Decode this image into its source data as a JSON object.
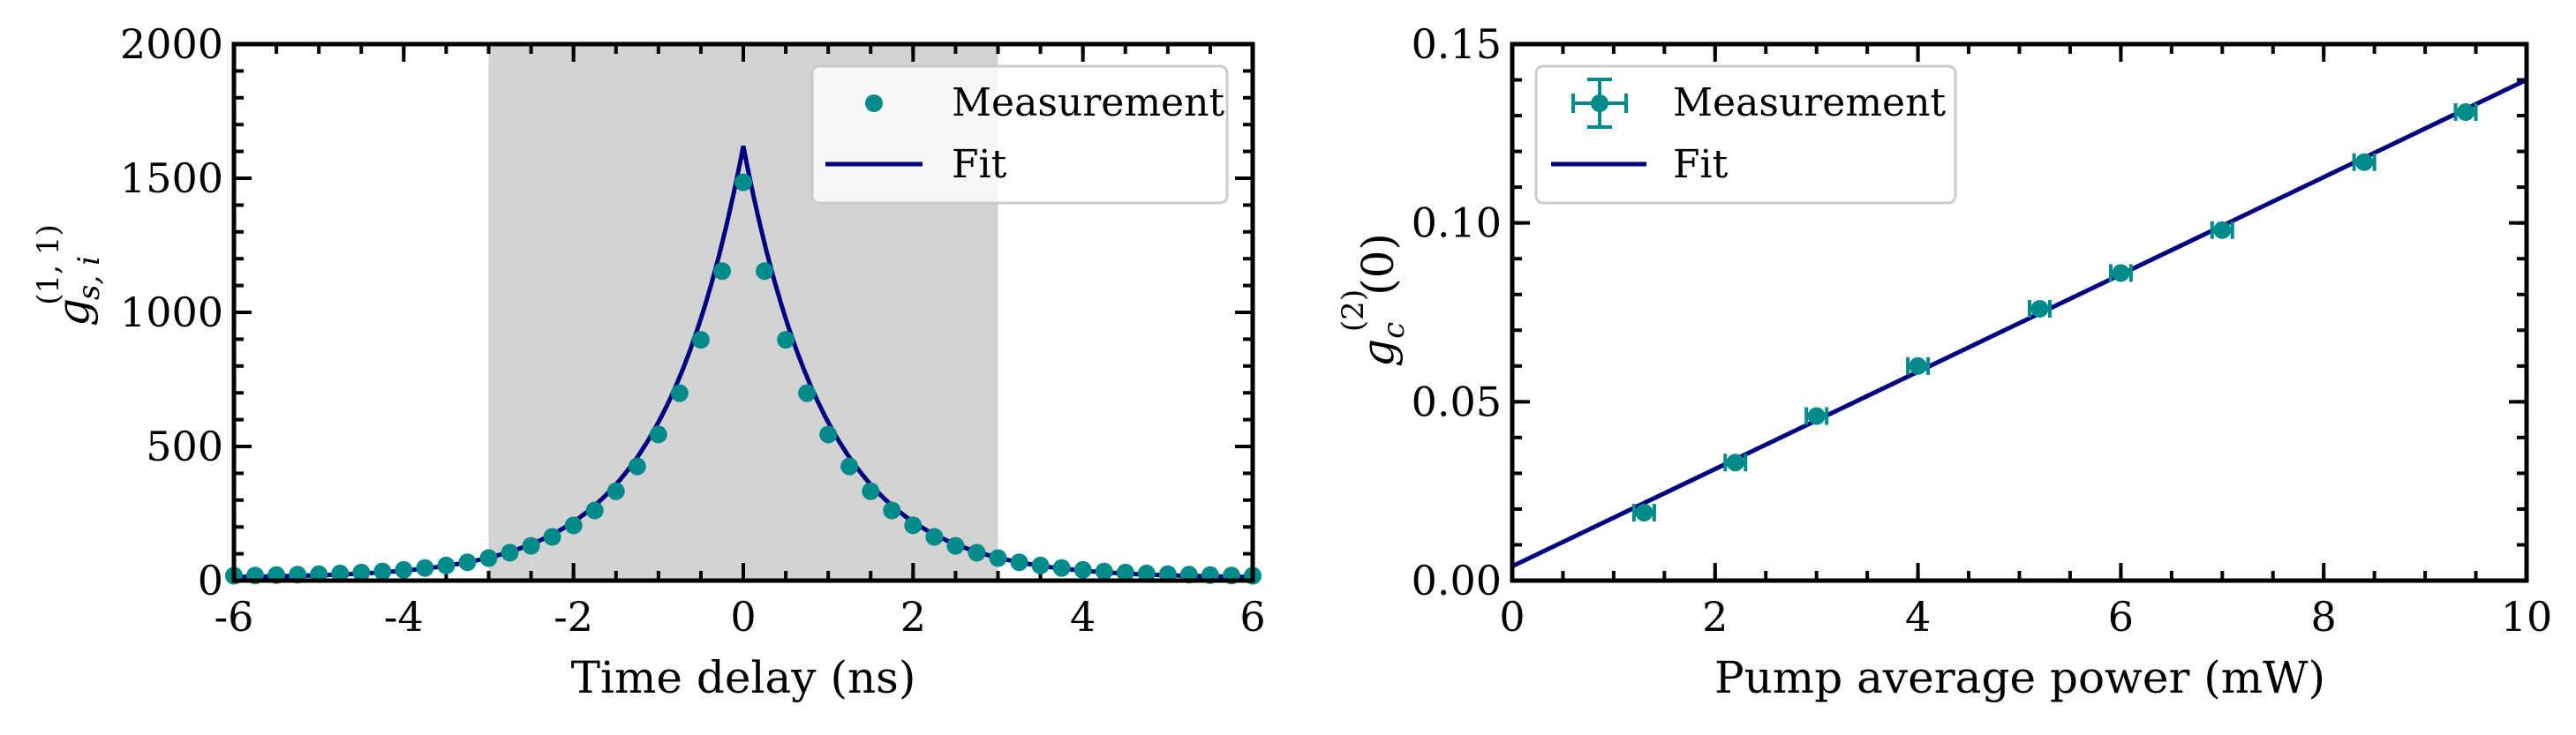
{
  "chart_data": [
    {
      "type": "scatter",
      "xlabel": "Time delay (ns)",
      "ylabel": "g_{s,i}^{(1,1)}",
      "ylabel_main": "g",
      "ylabel_sub": "s, i",
      "ylabel_sup": "(1, 1)",
      "xlim": [
        -6,
        6
      ],
      "ylim": [
        0,
        2000
      ],
      "xticks": [
        -6,
        -4,
        -2,
        0,
        2,
        4,
        6
      ],
      "xtick_labels": [
        "-6",
        "-4",
        "-2",
        "0",
        "2",
        "4",
        "6"
      ],
      "yticks": [
        0,
        500,
        1000,
        1500,
        2000
      ],
      "ytick_labels": [
        "0",
        "500",
        "1000",
        "1500",
        "2000"
      ],
      "shaded_region": [
        -3,
        3
      ],
      "legend": [
        "Measurement",
        "Fit"
      ],
      "legend_position": "top-right",
      "measurement": {
        "peak": 1470,
        "tau_ns": 0.98,
        "baseline": 15,
        "step_ns": 0.25
      },
      "fit": {
        "peak": 1610,
        "tau_ns": 0.98,
        "baseline": 10
      },
      "colors": {
        "measurement": "#008b8b",
        "fit": "#000080",
        "shade": "#d3d3d3"
      }
    },
    {
      "type": "scatter",
      "xlabel": "Pump average power (mW)",
      "ylabel": "g_c^{(2)}(0)",
      "ylabel_main": "g",
      "ylabel_sub": "c",
      "ylabel_sup": "(2)",
      "ylabel_tail": "(0)",
      "xlim": [
        0,
        10
      ],
      "ylim": [
        0,
        0.15
      ],
      "xticks": [
        0,
        2,
        4,
        6,
        8,
        10
      ],
      "xtick_labels": [
        "0",
        "2",
        "4",
        "6",
        "8",
        "10"
      ],
      "yticks": [
        0,
        0.05,
        0.1,
        0.15
      ],
      "ytick_labels": [
        "0.00",
        "0.05",
        "0.10",
        "0.15"
      ],
      "legend": [
        "Measurement",
        "Fit"
      ],
      "legend_position": "top-left",
      "x": [
        1.3,
        2.2,
        3.0,
        4.0,
        5.2,
        6.0,
        7.0,
        8.4,
        9.4
      ],
      "y": [
        0.019,
        0.033,
        0.046,
        0.06,
        0.076,
        0.086,
        0.098,
        0.117,
        0.131
      ],
      "x_err": 0.1,
      "y_err": 0.002,
      "fit": {
        "slope": 0.0136,
        "intercept": 0.004
      },
      "colors": {
        "measurement": "#008b8b",
        "fit": "#000080"
      }
    }
  ]
}
